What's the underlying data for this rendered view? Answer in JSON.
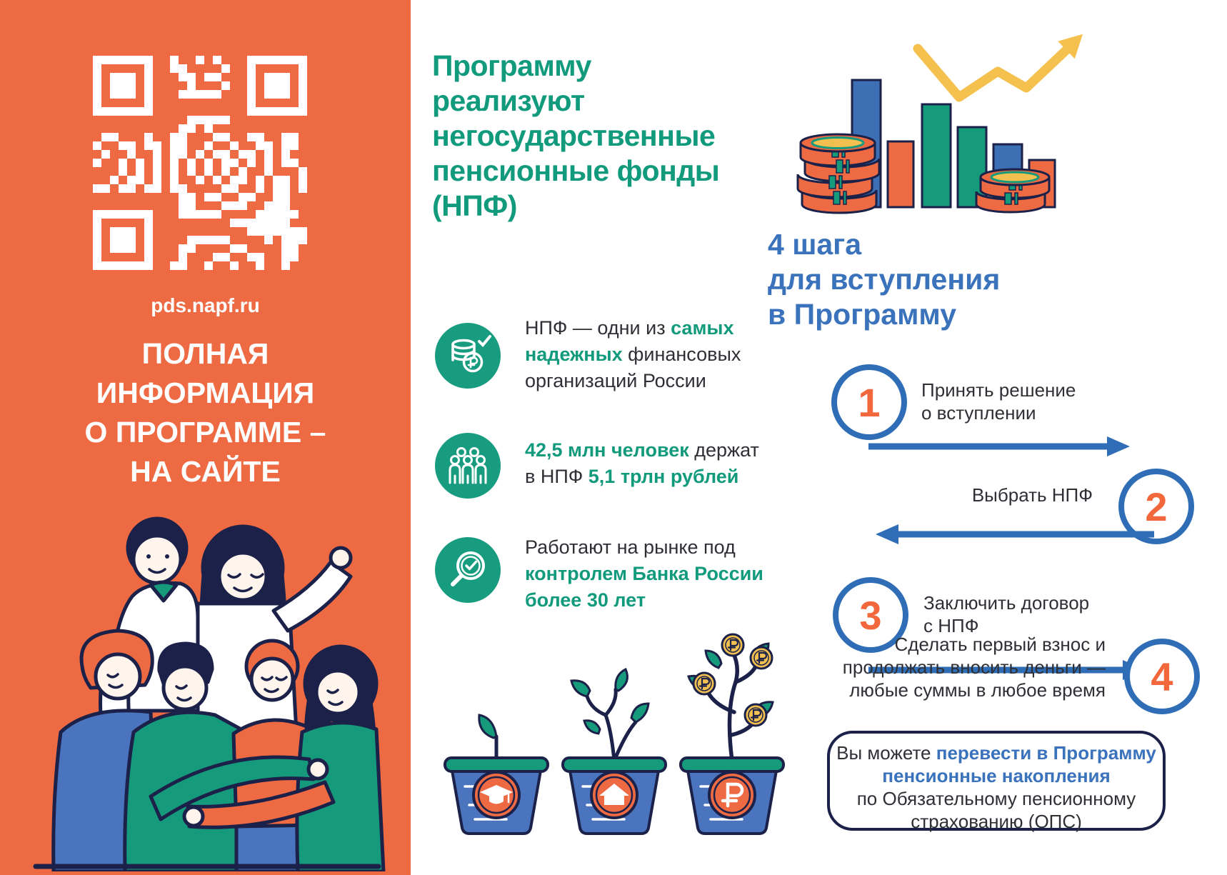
{
  "colors": {
    "orange": "#EE6A43",
    "teal": "#129A7C",
    "blue_heading": "#3A72BC",
    "circle_blue": "#2F6EB6",
    "navy_outline": "#1B2149",
    "step_number_orange": "#F2673B",
    "yellow_arrow": "#F5C14E",
    "pot_blue": "#4A74BE",
    "coin_gold": "#F2C050",
    "dark_text": "#2F3036"
  },
  "left_panel": {
    "qr_icon": "qr-code",
    "qr_label": "pds.napf.ru",
    "heading_lines": [
      "ПОЛНАЯ",
      "ИНФОРМАЦИЯ",
      "О ПРОГРАММЕ –",
      "НА САЙТЕ"
    ],
    "illustration": "group-hug"
  },
  "middle": {
    "heading_lines": [
      "Программу",
      "реализуют",
      "негосударственные",
      "пенсионные фонды",
      "(НПФ)"
    ],
    "facts": [
      {
        "icon": "coins-ruble-check-icon",
        "lines": [
          [
            {
              "text": "НПФ — одни из ",
              "accent": false
            },
            {
              "text": "самых",
              "accent": true
            }
          ],
          [
            {
              "text": "надежных",
              "accent": true
            },
            {
              "text": " финансовых",
              "accent": false
            }
          ],
          [
            {
              "text": "организаций России",
              "accent": false
            }
          ]
        ]
      },
      {
        "icon": "people-group-icon",
        "lines": [
          [
            {
              "text": "42,5 млн человек",
              "accent": true
            },
            {
              "text": " держат",
              "accent": false
            }
          ],
          [
            {
              "text": "в НПФ ",
              "accent": false
            },
            {
              "text": "5,1 трлн рублей",
              "accent": true
            }
          ]
        ]
      },
      {
        "icon": "magnifier-check-icon",
        "lines": [
          [
            {
              "text": "Работают на рынке под",
              "accent": false
            }
          ],
          [
            {
              "text": "контролем Банка России",
              "accent": true
            }
          ],
          [
            {
              "text": "более 30 лет",
              "accent": true
            }
          ]
        ]
      }
    ],
    "plants": [
      {
        "icon": "graduation-cap-icon",
        "stage": "sprout"
      },
      {
        "icon": "house-icon",
        "stage": "young-plant"
      },
      {
        "icon": "ruble-icon",
        "stage": "money-tree"
      }
    ]
  },
  "right": {
    "illustration": "growth-bars-coins-arrow",
    "heading_lines": [
      "4 шага",
      "для вступления",
      "в Программу"
    ],
    "steps": [
      {
        "number": "1",
        "lines": [
          "Принять решение",
          "о вступлении"
        ]
      },
      {
        "number": "2",
        "lines": [
          "Выбрать НПФ"
        ]
      },
      {
        "number": "3",
        "lines": [
          "Заключить договор",
          "с НПФ"
        ]
      },
      {
        "number": "4",
        "lines": [
          "Сделать первый взнос и",
          "продолжать вносить деньги —",
          "любые суммы в любое время"
        ]
      }
    ],
    "note_lines": [
      [
        {
          "text": "Вы можете ",
          "bold_blue": false
        },
        {
          "text": "перевести в Программу",
          "bold_blue": true
        }
      ],
      [
        {
          "text": "пенсионные накопления",
          "bold_blue": true
        }
      ],
      [
        {
          "text": "по Обязательному пенсионному",
          "bold_blue": false
        }
      ],
      [
        {
          "text": "страхованию (ОПС)",
          "bold_blue": false
        }
      ]
    ]
  }
}
